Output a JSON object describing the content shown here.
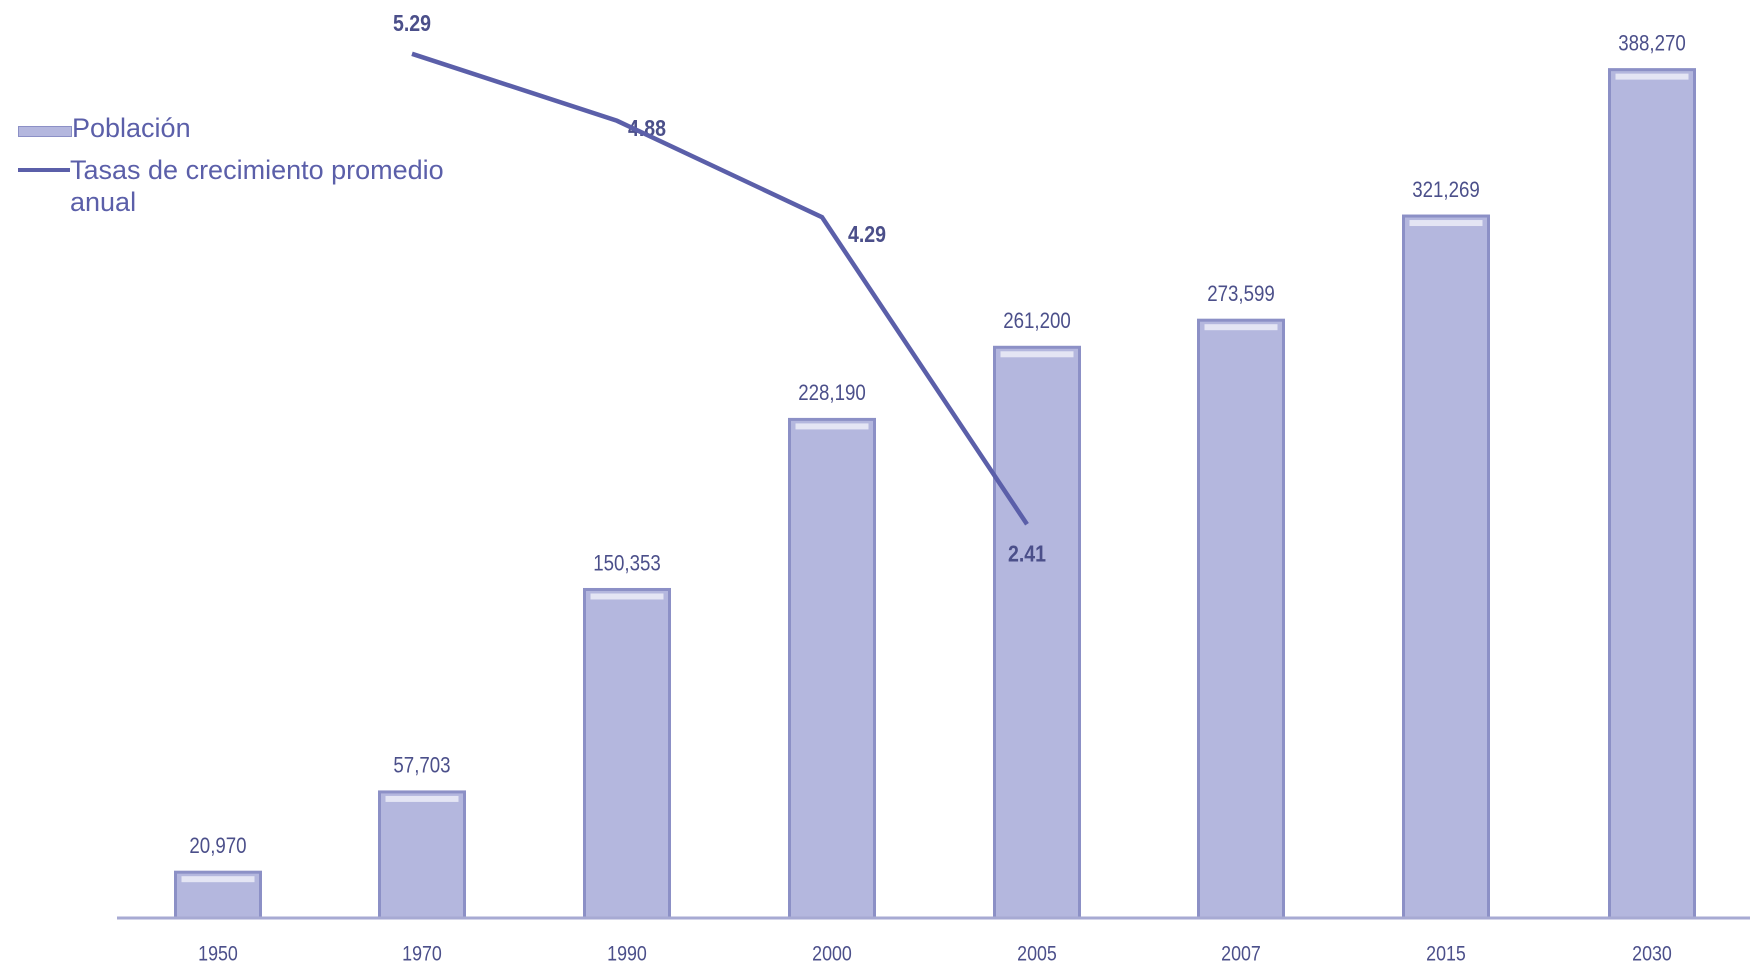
{
  "chart_data": {
    "type": "bar",
    "categories": [
      "1950",
      "1970",
      "1990",
      "2000",
      "2005",
      "2007",
      "2015",
      "2030"
    ],
    "series": [
      {
        "name": "Población",
        "type": "bar",
        "color": "#b4b7de",
        "values": [
          20970,
          57703,
          150353,
          228190,
          261200,
          273599,
          321269,
          388270
        ],
        "value_labels": [
          "20,970",
          "57,703",
          "150,353",
          "228,190",
          "261,200",
          "273,599",
          "321,269",
          "388,270"
        ]
      },
      {
        "name": "Tasas de crecimiento promedio anual",
        "type": "line",
        "axis": "y2",
        "color": "#5b5fa9",
        "values": [
          null,
          5.29,
          4.88,
          4.29,
          2.41,
          null,
          null,
          null
        ]
      }
    ],
    "ylim": [
      0,
      400000
    ],
    "y2lim": [
      0,
      5.35
    ],
    "legend": "top-left"
  }
}
